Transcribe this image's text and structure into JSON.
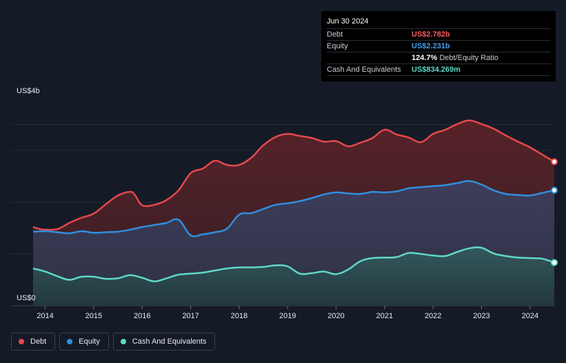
{
  "tooltip": {
    "date": "Jun 30 2024",
    "debt_label": "Debt",
    "debt_value": "US$2.782b",
    "equity_label": "Equity",
    "equity_value": "US$2.231b",
    "ratio_value": "124.7%",
    "ratio_label": "Debt/Equity Ratio",
    "cash_label": "Cash And Equivalents",
    "cash_value": "US$834.269m"
  },
  "legend": [
    {
      "label": "Debt",
      "color": "#e5484d"
    },
    {
      "label": "Equity",
      "color": "#2f8fe0"
    },
    {
      "label": "Cash And Equivalents",
      "color": "#5ed9c6"
    }
  ],
  "chart_data": {
    "type": "area",
    "title": "",
    "ylim": [
      0,
      4000
    ],
    "xlim": [
      2013.75,
      2024.5
    ],
    "y_tick_labels": [
      {
        "value": 4000,
        "label": "US$4b"
      },
      {
        "value": 0,
        "label": "US$0"
      }
    ],
    "gridlines_y": [
      0,
      1000,
      2000,
      3000,
      3500
    ],
    "x_ticks": [
      2014,
      2015,
      2016,
      2017,
      2018,
      2019,
      2020,
      2021,
      2022,
      2023,
      2024
    ],
    "series": [
      {
        "name": "Debt",
        "color": "#e5484d",
        "points": [
          [
            2013.75,
            1520
          ],
          [
            2013.9,
            1480
          ],
          [
            2014.0,
            1470
          ],
          [
            2014.25,
            1480
          ],
          [
            2014.5,
            1600
          ],
          [
            2014.75,
            1700
          ],
          [
            2015.0,
            1780
          ],
          [
            2015.25,
            1960
          ],
          [
            2015.5,
            2130
          ],
          [
            2015.75,
            2200
          ],
          [
            2015.85,
            2140
          ],
          [
            2016.0,
            1940
          ],
          [
            2016.25,
            1950
          ],
          [
            2016.5,
            2040
          ],
          [
            2016.75,
            2230
          ],
          [
            2017.0,
            2560
          ],
          [
            2017.25,
            2650
          ],
          [
            2017.5,
            2800
          ],
          [
            2017.75,
            2720
          ],
          [
            2018.0,
            2720
          ],
          [
            2018.25,
            2860
          ],
          [
            2018.5,
            3100
          ],
          [
            2018.75,
            3260
          ],
          [
            2019.0,
            3320
          ],
          [
            2019.25,
            3280
          ],
          [
            2019.5,
            3240
          ],
          [
            2019.75,
            3170
          ],
          [
            2020.0,
            3180
          ],
          [
            2020.25,
            3080
          ],
          [
            2020.5,
            3150
          ],
          [
            2020.75,
            3240
          ],
          [
            2021.0,
            3400
          ],
          [
            2021.25,
            3310
          ],
          [
            2021.5,
            3250
          ],
          [
            2021.75,
            3160
          ],
          [
            2022.0,
            3320
          ],
          [
            2022.25,
            3400
          ],
          [
            2022.5,
            3510
          ],
          [
            2022.75,
            3580
          ],
          [
            2023.0,
            3510
          ],
          [
            2023.25,
            3420
          ],
          [
            2023.5,
            3290
          ],
          [
            2023.75,
            3170
          ],
          [
            2024.0,
            3060
          ],
          [
            2024.25,
            2920
          ],
          [
            2024.5,
            2782
          ]
        ]
      },
      {
        "name": "Equity",
        "color": "#2f8fe0",
        "points": [
          [
            2013.75,
            1430
          ],
          [
            2014.0,
            1440
          ],
          [
            2014.25,
            1420
          ],
          [
            2014.5,
            1400
          ],
          [
            2014.75,
            1440
          ],
          [
            2015.0,
            1410
          ],
          [
            2015.25,
            1420
          ],
          [
            2015.5,
            1430
          ],
          [
            2015.75,
            1470
          ],
          [
            2016.0,
            1520
          ],
          [
            2016.25,
            1560
          ],
          [
            2016.5,
            1600
          ],
          [
            2016.75,
            1660
          ],
          [
            2017.0,
            1360
          ],
          [
            2017.25,
            1380
          ],
          [
            2017.5,
            1420
          ],
          [
            2017.75,
            1490
          ],
          [
            2018.0,
            1760
          ],
          [
            2018.25,
            1790
          ],
          [
            2018.5,
            1870
          ],
          [
            2018.75,
            1950
          ],
          [
            2019.0,
            1980
          ],
          [
            2019.25,
            2020
          ],
          [
            2019.5,
            2080
          ],
          [
            2019.75,
            2150
          ],
          [
            2020.0,
            2190
          ],
          [
            2020.25,
            2170
          ],
          [
            2020.5,
            2160
          ],
          [
            2020.75,
            2200
          ],
          [
            2021.0,
            2190
          ],
          [
            2021.25,
            2210
          ],
          [
            2021.5,
            2270
          ],
          [
            2021.75,
            2290
          ],
          [
            2022.0,
            2310
          ],
          [
            2022.25,
            2330
          ],
          [
            2022.5,
            2370
          ],
          [
            2022.75,
            2410
          ],
          [
            2023.0,
            2340
          ],
          [
            2023.25,
            2230
          ],
          [
            2023.5,
            2160
          ],
          [
            2023.75,
            2140
          ],
          [
            2024.0,
            2130
          ],
          [
            2024.25,
            2180
          ],
          [
            2024.5,
            2231
          ]
        ]
      },
      {
        "name": "Cash And Equivalents",
        "color": "#5ed9c6",
        "points": [
          [
            2013.75,
            720
          ],
          [
            2014.0,
            660
          ],
          [
            2014.25,
            570
          ],
          [
            2014.5,
            500
          ],
          [
            2014.75,
            560
          ],
          [
            2015.0,
            560
          ],
          [
            2015.25,
            520
          ],
          [
            2015.5,
            530
          ],
          [
            2015.75,
            590
          ],
          [
            2016.0,
            540
          ],
          [
            2016.25,
            470
          ],
          [
            2016.5,
            530
          ],
          [
            2016.75,
            600
          ],
          [
            2017.0,
            620
          ],
          [
            2017.25,
            640
          ],
          [
            2017.5,
            680
          ],
          [
            2017.75,
            720
          ],
          [
            2018.0,
            740
          ],
          [
            2018.25,
            740
          ],
          [
            2018.5,
            750
          ],
          [
            2018.75,
            780
          ],
          [
            2019.0,
            760
          ],
          [
            2019.25,
            620
          ],
          [
            2019.5,
            630
          ],
          [
            2019.75,
            660
          ],
          [
            2020.0,
            610
          ],
          [
            2020.25,
            700
          ],
          [
            2020.5,
            860
          ],
          [
            2020.75,
            920
          ],
          [
            2021.0,
            930
          ],
          [
            2021.25,
            940
          ],
          [
            2021.5,
            1020
          ],
          [
            2021.75,
            1000
          ],
          [
            2022.0,
            970
          ],
          [
            2022.25,
            960
          ],
          [
            2022.5,
            1040
          ],
          [
            2022.75,
            1110
          ],
          [
            2023.0,
            1120
          ],
          [
            2023.25,
            1010
          ],
          [
            2023.5,
            960
          ],
          [
            2023.75,
            930
          ],
          [
            2024.0,
            920
          ],
          [
            2024.25,
            910
          ],
          [
            2024.5,
            834
          ]
        ]
      }
    ]
  }
}
